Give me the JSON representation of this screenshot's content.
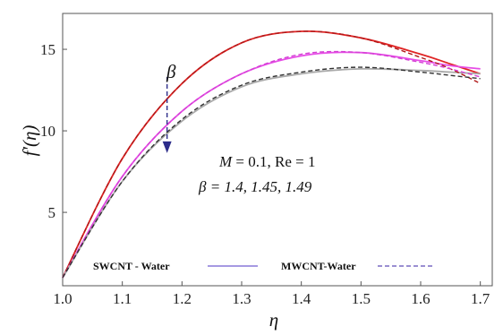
{
  "chart_data": {
    "type": "line",
    "title": "",
    "xlabel": "η",
    "ylabel": "f′(η)",
    "xlim": [
      1.0,
      1.72
    ],
    "ylim": [
      0.5,
      17.2
    ],
    "x_ticks": [
      "1.0",
      "1.1",
      "1.2",
      "1.3",
      "1.4",
      "1.5",
      "1.6",
      "1.7"
    ],
    "y_ticks": [
      "5",
      "10",
      "15"
    ],
    "series": [
      {
        "group": "SWCNT - Water",
        "color": "#e02525",
        "dashed": false,
        "x": [
          1.0,
          1.1,
          1.2,
          1.3,
          1.4,
          1.5,
          1.6,
          1.65,
          1.7
        ],
        "y": [
          1.0,
          8.3,
          12.9,
          15.4,
          16.1,
          15.7,
          14.7,
          14.1,
          13.5
        ]
      },
      {
        "group": "SWCNT - Water",
        "color": "#e64de6",
        "dashed": false,
        "x": [
          1.0,
          1.1,
          1.2,
          1.3,
          1.4,
          1.5,
          1.6,
          1.65,
          1.7
        ],
        "y": [
          1.0,
          7.2,
          11.2,
          13.5,
          14.6,
          14.8,
          14.3,
          14.0,
          13.8
        ]
      },
      {
        "group": "SWCNT - Water",
        "color": "#aaaaaa",
        "dashed": false,
        "x": [
          1.0,
          1.1,
          1.2,
          1.3,
          1.4,
          1.5,
          1.6,
          1.65,
          1.7
        ],
        "y": [
          1.0,
          6.9,
          10.6,
          12.7,
          13.5,
          13.8,
          13.7,
          13.6,
          13.5
        ]
      },
      {
        "group": "MWCNT-Water",
        "color": "#b01818",
        "dashed": true,
        "x": [
          1.0,
          1.1,
          1.2,
          1.3,
          1.4,
          1.5,
          1.6,
          1.65,
          1.7
        ],
        "y": [
          1.0,
          8.3,
          12.9,
          15.4,
          16.1,
          15.7,
          14.5,
          13.8,
          12.9
        ]
      },
      {
        "group": "MWCNT-Water",
        "color": "#d43fd4",
        "dashed": true,
        "x": [
          1.0,
          1.1,
          1.2,
          1.3,
          1.4,
          1.5,
          1.6,
          1.65,
          1.7
        ],
        "y": [
          1.0,
          7.2,
          11.2,
          13.5,
          14.7,
          14.8,
          14.2,
          13.8,
          13.3
        ]
      },
      {
        "group": "MWCNT-Water",
        "color": "#333333",
        "dashed": true,
        "x": [
          1.0,
          1.1,
          1.2,
          1.3,
          1.4,
          1.5,
          1.6,
          1.65,
          1.7
        ],
        "y": [
          1.0,
          6.9,
          10.7,
          12.8,
          13.6,
          13.9,
          13.6,
          13.4,
          13.2
        ]
      }
    ],
    "legend": {
      "placement": "bottom",
      "entries": [
        {
          "label": "SWCNT - Water",
          "style": "solid",
          "color": "#8878d8"
        },
        {
          "label": "MWCNT-Water",
          "style": "dashed",
          "color": "#7a6ac4"
        }
      ]
    },
    "annotations": {
      "beta_symbol": "β",
      "params_M": "M",
      "params_rest": " = 0.1, Re = 1",
      "params_beta": "β = 1.4, 1.45, 1.49",
      "arrow": {
        "from": [
          1.175,
          13.3
        ],
        "to": [
          1.175,
          8.8
        ],
        "color": "#2d2d8a"
      }
    },
    "grid": false
  }
}
